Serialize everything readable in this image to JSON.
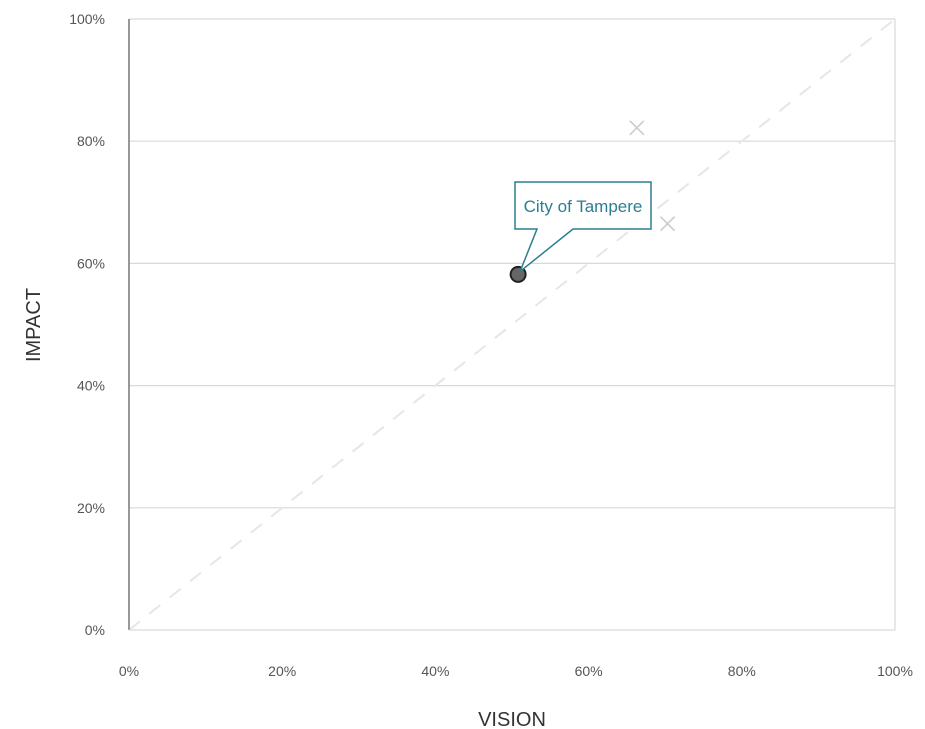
{
  "chart_data": {
    "type": "scatter",
    "xlabel": "VISION",
    "ylabel": "IMPACT",
    "xlim": [
      0,
      100
    ],
    "ylim": [
      0,
      100
    ],
    "x_ticks": [
      "0%",
      "20%",
      "40%",
      "60%",
      "80%",
      "100%"
    ],
    "y_ticks": [
      "0%",
      "20%",
      "40%",
      "60%",
      "80%",
      "100%"
    ],
    "grid": "horizontal",
    "diagonal_reference": true,
    "highlight": {
      "label": "City of Tampere",
      "x": 50.8,
      "y": 58.2
    },
    "others": [
      {
        "x": 66.3,
        "y": 82.2
      },
      {
        "x": 70.3,
        "y": 66.5
      }
    ]
  },
  "colors": {
    "highlight_fill": "#666666",
    "callout_border": "#2a7f8f",
    "callout_text": "#2a7f8f",
    "other_marker": "#cccccc",
    "grid": "#d9d9d9",
    "diagonal": "#e6e6e6"
  }
}
